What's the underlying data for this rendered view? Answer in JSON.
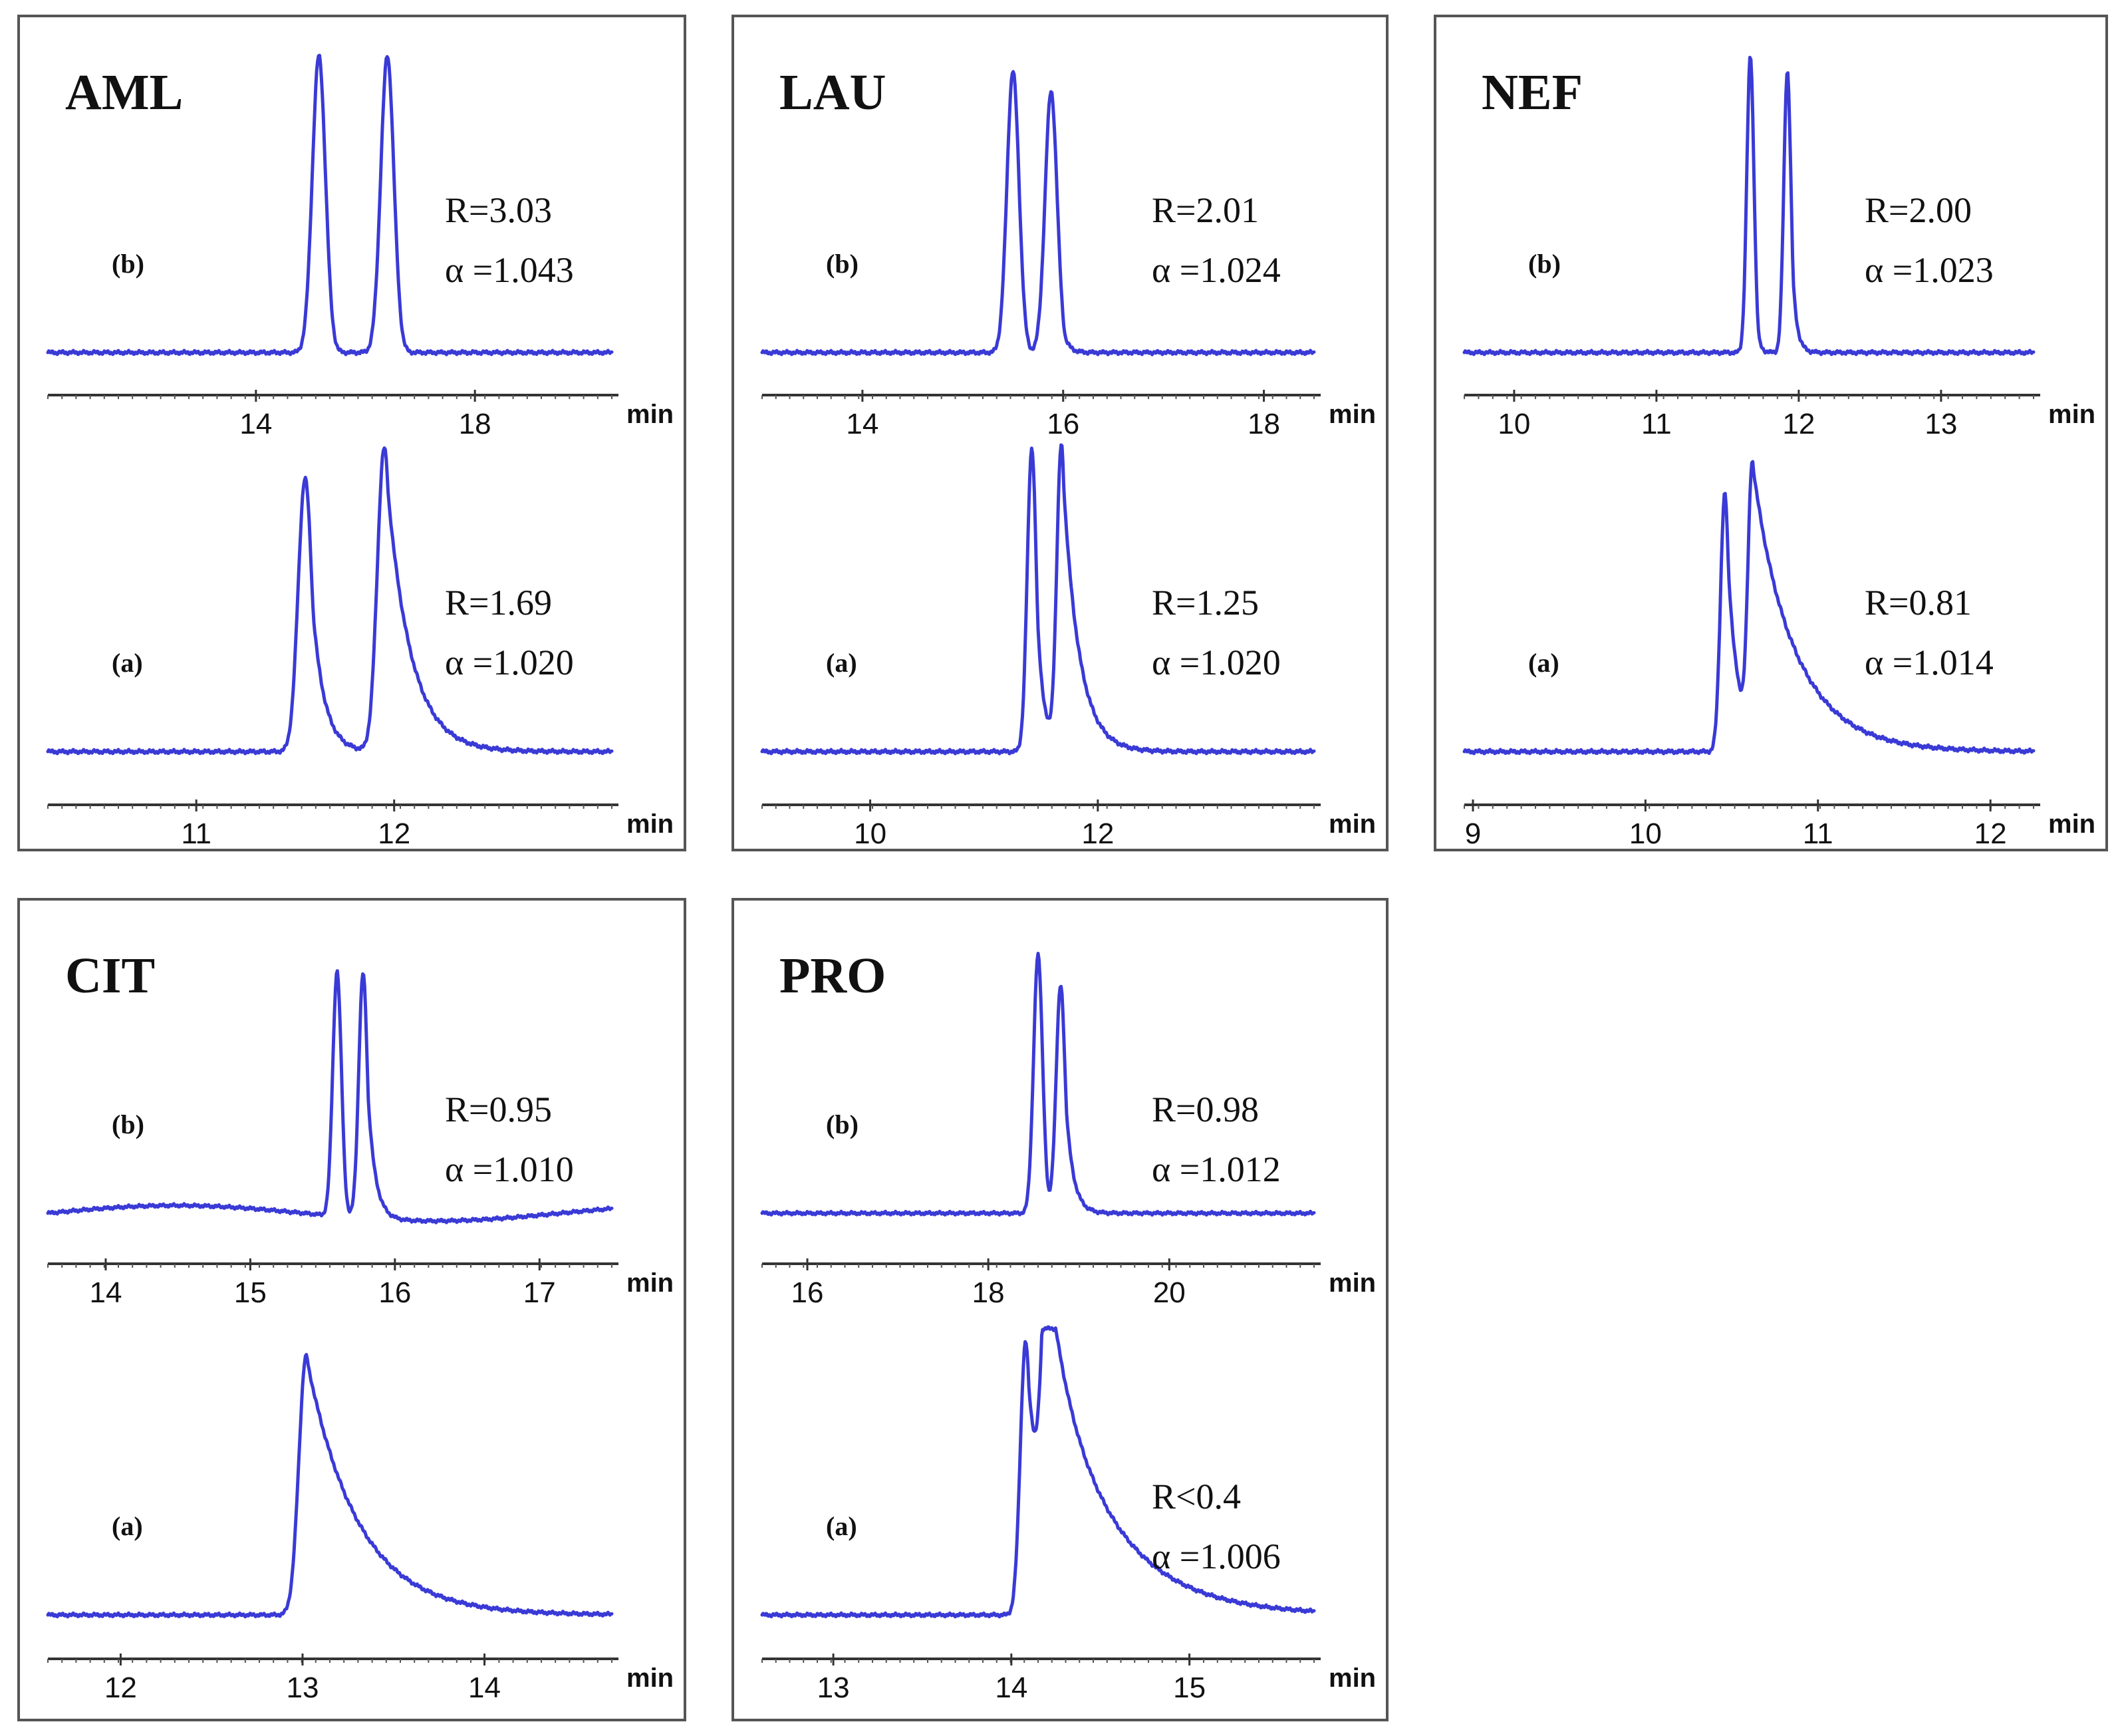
{
  "chart_data": [
    {
      "type": "line",
      "title": "AML",
      "xlabel": "min",
      "panels": [
        {
          "label": "(b)",
          "R": "R=3.03",
          "alpha": "α =1.043",
          "x_ticks": [
            "14",
            "18"
          ],
          "xlim": [
            10.2,
            20.5
          ],
          "peaks": [
            {
              "center": 15.15,
              "height": 1.0,
              "sigma": 0.12,
              "tail": 0.0
            },
            {
              "center": 16.4,
              "height": 1.0,
              "sigma": 0.12,
              "tail": 0.0
            }
          ],
          "baseline_level": 0.0
        },
        {
          "label": "(a)",
          "R": "R=1.69",
          "alpha": "α =1.020",
          "x_ticks": [
            "11",
            "12"
          ],
          "xlim": [
            10.25,
            13.1
          ],
          "peaks": [
            {
              "center": 11.55,
              "height": 0.9,
              "sigma": 0.035,
              "tail": 0.06
            },
            {
              "center": 11.95,
              "height": 1.0,
              "sigma": 0.035,
              "tail": 0.12
            }
          ],
          "baseline_level": 0.0
        }
      ]
    },
    {
      "type": "line",
      "title": "LAU",
      "xlabel": "min",
      "panels": [
        {
          "label": "(b)",
          "R": "R=2.01",
          "alpha": "α =1.024",
          "x_ticks": [
            "14",
            "16",
            "18"
          ],
          "xlim": [
            13.0,
            18.5
          ],
          "peaks": [
            {
              "center": 15.5,
              "height": 0.95,
              "sigma": 0.06,
              "tail": 0.04
            },
            {
              "center": 15.88,
              "height": 0.88,
              "sigma": 0.06,
              "tail": 0.05
            }
          ],
          "baseline_level": 0.0
        },
        {
          "label": "(a)",
          "R": "R=1.25",
          "alpha": "α =1.020",
          "x_ticks": [
            "10",
            "12"
          ],
          "xlim": [
            9.05,
            13.9
          ],
          "peaks": [
            {
              "center": 11.42,
              "height": 1.0,
              "sigma": 0.04,
              "tail": 0.06
            },
            {
              "center": 11.68,
              "height": 1.0,
              "sigma": 0.04,
              "tail": 0.14
            }
          ],
          "baseline_level": 0.0
        }
      ]
    },
    {
      "type": "line",
      "title": "NEF",
      "xlabel": "min",
      "panels": [
        {
          "label": "(b)",
          "R": "R=2.00",
          "alpha": "α =1.023",
          "x_ticks": [
            "10",
            "11",
            "12",
            "13"
          ],
          "xlim": [
            9.65,
            13.65
          ],
          "peaks": [
            {
              "center": 11.66,
              "height": 1.0,
              "sigma": 0.025,
              "tail": 0.02
            },
            {
              "center": 11.92,
              "height": 0.95,
              "sigma": 0.025,
              "tail": 0.03
            }
          ],
          "baseline_level": 0.0
        },
        {
          "label": "(a)",
          "R": "R=0.81",
          "alpha": "α =1.014",
          "x_ticks": [
            "9",
            "10",
            "11",
            "12"
          ],
          "xlim": [
            8.95,
            12.25
          ],
          "peaks": [
            {
              "center": 10.46,
              "height": 0.85,
              "sigma": 0.025,
              "tail": 0.06
            },
            {
              "center": 10.62,
              "height": 0.9,
              "sigma": 0.025,
              "tail": 0.25
            }
          ],
          "baseline_level": 0.0
        }
      ]
    },
    {
      "type": "line",
      "title": "CIT",
      "xlabel": "min",
      "panels": [
        {
          "label": "(b)",
          "R": "R=0.95",
          "alpha": "α =1.010",
          "x_ticks": [
            "14",
            "15",
            "16",
            "17"
          ],
          "xlim": [
            13.6,
            17.5
          ],
          "peaks": [
            {
              "center": 15.6,
              "height": 0.95,
              "sigma": 0.03,
              "tail": 0.02
            },
            {
              "center": 15.78,
              "height": 0.95,
              "sigma": 0.03,
              "tail": 0.05
            }
          ],
          "baseline_level": 0.03
        },
        {
          "label": "(a)",
          "R": "",
          "alpha": "",
          "x_ticks": [
            "12",
            "13",
            "14"
          ],
          "xlim": [
            11.6,
            14.7
          ],
          "peaks": [
            {
              "center": 13.02,
              "height": 0.95,
              "sigma": 0.04,
              "tail": 0.28
            }
          ],
          "baseline_level": 0.0
        }
      ]
    },
    {
      "type": "line",
      "title": "PRO",
      "xlabel": "min",
      "panels": [
        {
          "label": "(b)",
          "R": "R=0.98",
          "alpha": "α =1.012",
          "x_ticks": [
            "16",
            "18",
            "20"
          ],
          "xlim": [
            15.5,
            21.6
          ],
          "peaks": [
            {
              "center": 18.55,
              "height": 1.0,
              "sigma": 0.05,
              "tail": 0.04
            },
            {
              "center": 18.8,
              "height": 0.88,
              "sigma": 0.05,
              "tail": 0.08
            }
          ],
          "baseline_level": 0.0
        },
        {
          "label": "(a)",
          "R": "R<0.4",
          "alpha": "α =1.006",
          "x_ticks": [
            "13",
            "14",
            "15"
          ],
          "xlim": [
            12.6,
            15.7
          ],
          "peaks": [
            {
              "center": 14.08,
              "height": 1.0,
              "sigma": 0.03,
              "tail": 0.1
            },
            {
              "center": 14.2,
              "height": 1.0,
              "sigma": 0.03,
              "tail": 0.35
            }
          ],
          "baseline_level": 0.0
        }
      ]
    }
  ],
  "colors": {
    "trace": "#3a3ad6",
    "trace_shadow": "#1a1a6a"
  }
}
